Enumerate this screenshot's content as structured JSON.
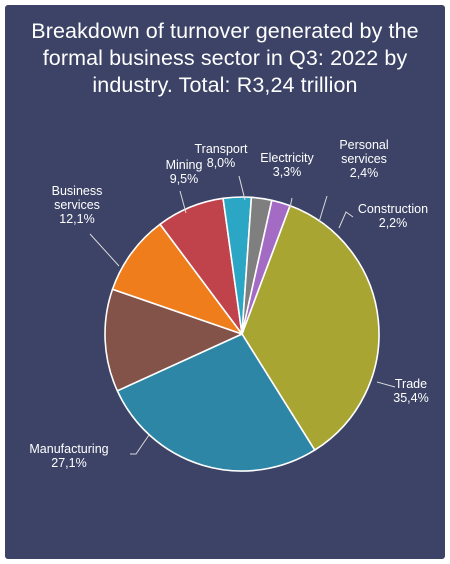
{
  "chart_data": {
    "type": "pie",
    "title_lines": [
      "Breakdown of turnover generated by the",
      "formal business sector in Q3: 2022 by",
      "industry. Total: R3,24 trillion"
    ],
    "slices": [
      {
        "name": "Trade",
        "label_lines": [
          "Trade"
        ],
        "value_label": "35,4%",
        "value": 35.4,
        "color": "#a8a533"
      },
      {
        "name": "Manufacturing",
        "label_lines": [
          "Manufacturing"
        ],
        "value_label": "27,1%",
        "value": 27.1,
        "color": "#2d86a5"
      },
      {
        "name": "Business services",
        "label_lines": [
          "Business",
          "services"
        ],
        "value_label": "12,1%",
        "value": 12.1,
        "color": "#835249"
      },
      {
        "name": "Mining",
        "label_lines": [
          "Mining"
        ],
        "value_label": "9,5%",
        "value": 9.5,
        "color": "#ef7d1b"
      },
      {
        "name": "Transport",
        "label_lines": [
          "Transport"
        ],
        "value_label": "8,0%",
        "value": 8.0,
        "color": "#c0434c"
      },
      {
        "name": "Electricity",
        "label_lines": [
          "Electricity"
        ],
        "value_label": "3,3%",
        "value": 3.3,
        "color": "#2ba6c4"
      },
      {
        "name": "Personal services",
        "label_lines": [
          "Personal",
          "services"
        ],
        "value_label": "2,4%",
        "value": 2.4,
        "color": "#7f7f7f"
      },
      {
        "name": "Construction",
        "label_lines": [
          "Construction"
        ],
        "value_label": "2,2%",
        "value": 2.2,
        "color": "#a46bc5"
      }
    ]
  }
}
